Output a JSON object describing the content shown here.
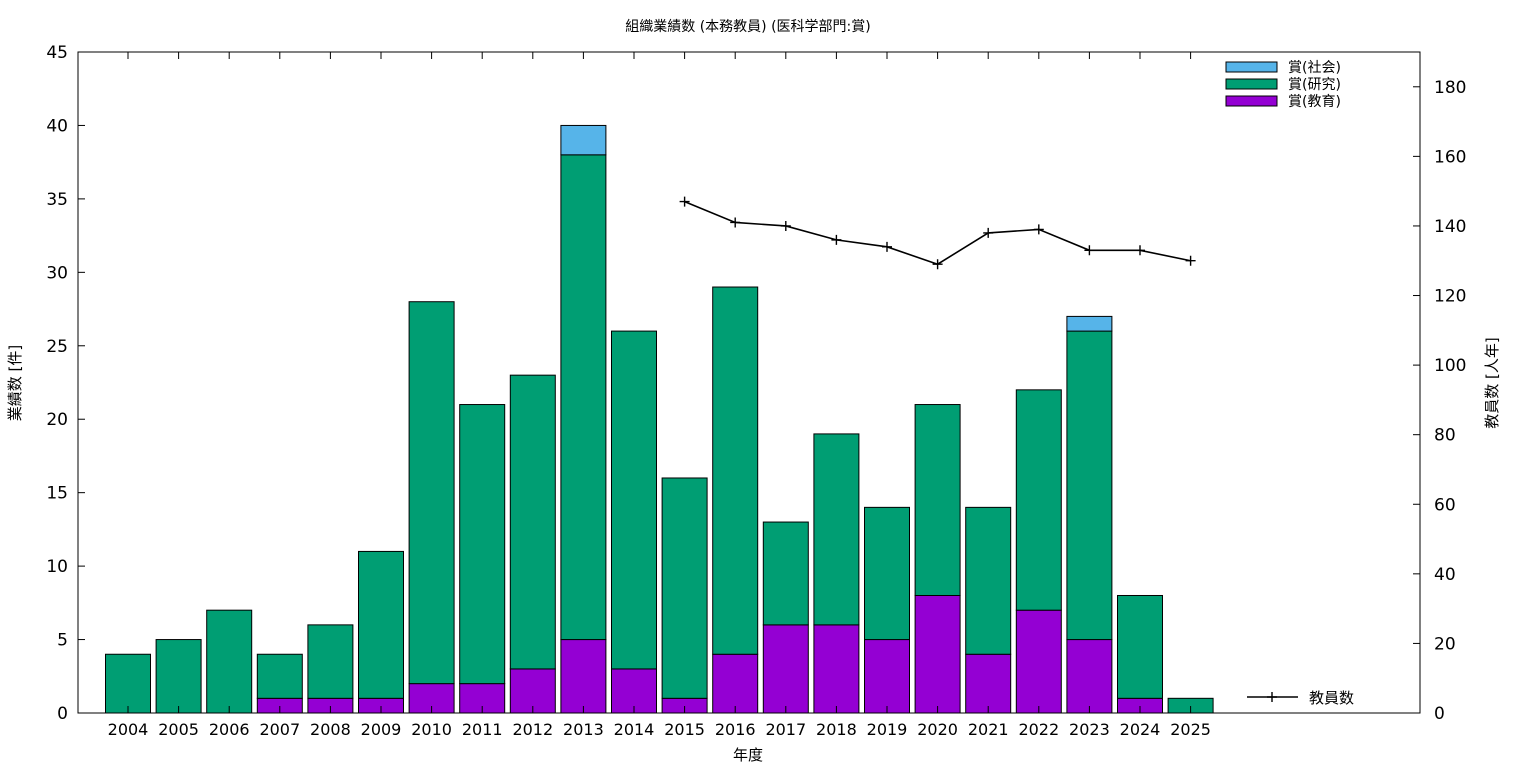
{
  "chart_data": {
    "type": "bar",
    "stacked": true,
    "title": "組織業績数 (本務教員) (医科学部門:賞)",
    "xlabel": "年度",
    "ylabel": "業績数 [件]",
    "y2label": "教員数 [人年]",
    "ylim": [
      0,
      45
    ],
    "y2lim": [
      0,
      190
    ],
    "yticks": [
      "0",
      "5",
      "10",
      "15",
      "20",
      "25",
      "30",
      "35",
      "40",
      "45"
    ],
    "y2ticks": [
      "0",
      "20",
      "40",
      "60",
      "80",
      "100",
      "120",
      "140",
      "160",
      "180"
    ],
    "legend_position": "top-right",
    "categories": [
      "2004",
      "2005",
      "2006",
      "2007",
      "2008",
      "2009",
      "2010",
      "2011",
      "2012",
      "2013",
      "2014",
      "2015",
      "2016",
      "2017",
      "2018",
      "2019",
      "2020",
      "2021",
      "2022",
      "2023",
      "2024",
      "2025"
    ],
    "series": [
      {
        "name": "賞(教育)",
        "color": "#9400d3",
        "values": [
          0,
          0,
          0,
          1,
          1,
          1,
          2,
          2,
          3,
          5,
          3,
          1,
          4,
          6,
          6,
          5,
          8,
          4,
          7,
          5,
          1,
          0
        ]
      },
      {
        "name": "賞(研究)",
        "color": "#009e73",
        "values": [
          4,
          5,
          7,
          3,
          5,
          10,
          26,
          19,
          20,
          33,
          23,
          15,
          25,
          7,
          13,
          9,
          13,
          10,
          15,
          21,
          7,
          1
        ]
      },
      {
        "name": "賞(社会)",
        "color": "#56b4e9",
        "values": [
          0,
          0,
          0,
          0,
          0,
          0,
          0,
          0,
          0,
          2,
          0,
          0,
          0,
          0,
          0,
          0,
          0,
          0,
          0,
          1,
          0,
          0
        ]
      }
    ],
    "line_series": {
      "name": "教員数",
      "color": "#000000",
      "axis": "y2",
      "categories": [
        "2015",
        "2016",
        "2017",
        "2018",
        "2019",
        "2020",
        "2021",
        "2022",
        "2023",
        "2024",
        "2025"
      ],
      "values": [
        147,
        141,
        140,
        136,
        134,
        129,
        138,
        139,
        133,
        133,
        130
      ]
    }
  }
}
